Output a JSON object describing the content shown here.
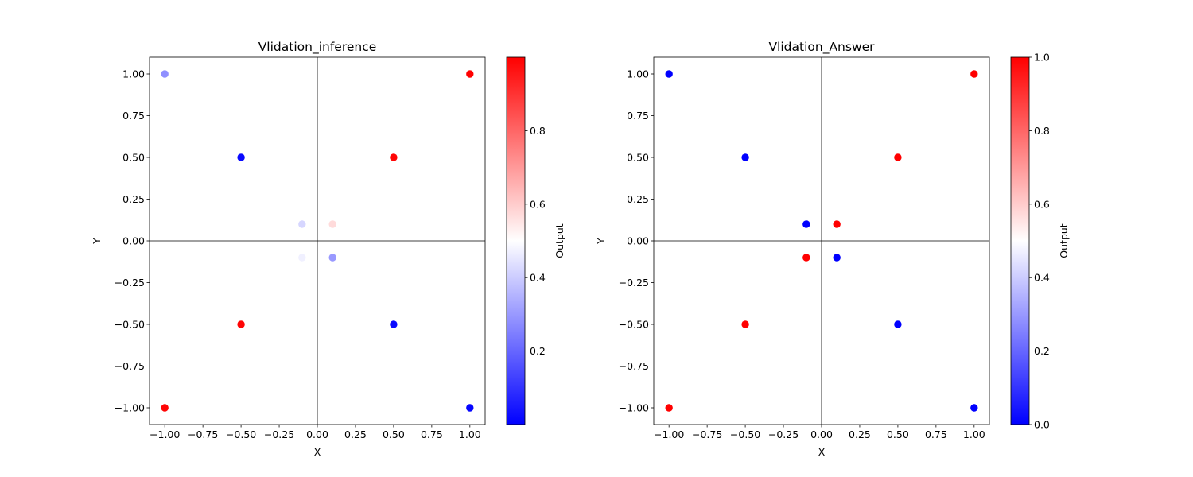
{
  "chart_data": [
    {
      "type": "scatter",
      "title": "Vlidation_inference",
      "xlabel": "X",
      "ylabel": "Y",
      "xlim": [
        -1.1,
        1.1
      ],
      "ylim": [
        -1.1,
        1.1
      ],
      "xticks": [
        -1.0,
        -0.75,
        -0.5,
        -0.25,
        0.0,
        0.25,
        0.5,
        0.75,
        1.0
      ],
      "yticks": [
        -1.0,
        -0.75,
        -0.5,
        -0.25,
        0.0,
        0.25,
        0.5,
        0.75,
        1.0
      ],
      "xtick_labels": [
        "−1.00",
        "−0.75",
        "−0.50",
        "−0.25",
        "0.00",
        "0.25",
        "0.50",
        "0.75",
        "1.00"
      ],
      "ytick_labels": [
        "−1.00",
        "−0.75",
        "−0.50",
        "−0.25",
        "0.00",
        "0.25",
        "0.50",
        "0.75",
        "1.00"
      ],
      "grid": false,
      "axis_lines": true,
      "colormap": "bwr",
      "colorbar": {
        "label": "Output",
        "range": [
          0.0,
          1.0
        ],
        "ticks": [
          0.2,
          0.4,
          0.6,
          0.8
        ],
        "tick_labels": [
          "0.2",
          "0.4",
          "0.6",
          "0.8"
        ]
      },
      "points": [
        {
          "x": -1.0,
          "y": 1.0,
          "value": 0.28
        },
        {
          "x": 1.0,
          "y": 1.0,
          "value": 1.0
        },
        {
          "x": -0.5,
          "y": 0.5,
          "value": 0.02
        },
        {
          "x": 0.5,
          "y": 0.5,
          "value": 0.99
        },
        {
          "x": -0.1,
          "y": 0.1,
          "value": 0.42
        },
        {
          "x": 0.1,
          "y": 0.1,
          "value": 0.57
        },
        {
          "x": -0.1,
          "y": -0.1,
          "value": 0.47
        },
        {
          "x": 0.1,
          "y": -0.1,
          "value": 0.3
        },
        {
          "x": -0.5,
          "y": -0.5,
          "value": 0.99
        },
        {
          "x": 0.5,
          "y": -0.5,
          "value": 0.02
        },
        {
          "x": -1.0,
          "y": -1.0,
          "value": 0.99
        },
        {
          "x": 1.0,
          "y": -1.0,
          "value": 0.01
        }
      ]
    },
    {
      "type": "scatter",
      "title": "Vlidation_Answer",
      "xlabel": "X",
      "ylabel": "Y",
      "xlim": [
        -1.1,
        1.1
      ],
      "ylim": [
        -1.1,
        1.1
      ],
      "xticks": [
        -1.0,
        -0.75,
        -0.5,
        -0.25,
        0.0,
        0.25,
        0.5,
        0.75,
        1.0
      ],
      "yticks": [
        -1.0,
        -0.75,
        -0.5,
        -0.25,
        0.0,
        0.25,
        0.5,
        0.75,
        1.0
      ],
      "xtick_labels": [
        "−1.00",
        "−0.75",
        "−0.50",
        "−0.25",
        "0.00",
        "0.25",
        "0.50",
        "0.75",
        "1.00"
      ],
      "ytick_labels": [
        "−1.00",
        "−0.75",
        "−0.50",
        "−0.25",
        "0.00",
        "0.25",
        "0.50",
        "0.75",
        "1.00"
      ],
      "grid": false,
      "axis_lines": true,
      "colormap": "bwr",
      "colorbar": {
        "label": "Output",
        "range": [
          0.0,
          1.0
        ],
        "ticks": [
          0.0,
          0.2,
          0.4,
          0.6,
          0.8,
          1.0
        ],
        "tick_labels": [
          "0.0",
          "0.2",
          "0.4",
          "0.6",
          "0.8",
          "1.0"
        ]
      },
      "points": [
        {
          "x": -1.0,
          "y": 1.0,
          "value": 0
        },
        {
          "x": 1.0,
          "y": 1.0,
          "value": 1
        },
        {
          "x": -0.5,
          "y": 0.5,
          "value": 0
        },
        {
          "x": 0.5,
          "y": 0.5,
          "value": 1
        },
        {
          "x": -0.1,
          "y": 0.1,
          "value": 0
        },
        {
          "x": 0.1,
          "y": 0.1,
          "value": 1
        },
        {
          "x": -0.1,
          "y": -0.1,
          "value": 1
        },
        {
          "x": 0.1,
          "y": -0.1,
          "value": 0
        },
        {
          "x": -0.5,
          "y": -0.5,
          "value": 1
        },
        {
          "x": 0.5,
          "y": -0.5,
          "value": 0
        },
        {
          "x": -1.0,
          "y": -1.0,
          "value": 1
        },
        {
          "x": 1.0,
          "y": -1.0,
          "value": 0
        }
      ]
    }
  ]
}
